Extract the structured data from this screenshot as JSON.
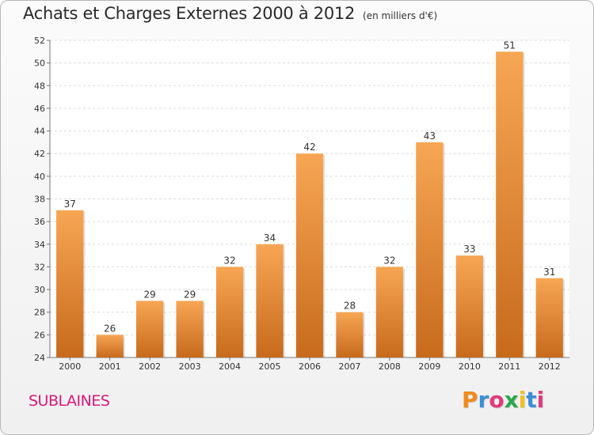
{
  "header": {
    "title": "Achats et Charges Externes 2000 à 2012",
    "unit": "(en milliers d'€)"
  },
  "footer": {
    "commune": "SUBLAINES",
    "logo_text": "Proxiti"
  },
  "colors": {
    "bar_light": "#f7a654",
    "bar_dark": "#c76a1c",
    "commune": "#d9187a",
    "logo": [
      "#f08a1c",
      "#3a8fd6",
      "#e23a7a",
      "#2aa84a",
      "#f0c11c",
      "#3a8fd6",
      "#e23a7a"
    ]
  },
  "chart_data": {
    "type": "bar",
    "title": "Achats et Charges Externes 2000 à 2012",
    "categories": [
      "2000",
      "2001",
      "2002",
      "2003",
      "2004",
      "2005",
      "2006",
      "2007",
      "2008",
      "2009",
      "2010",
      "2011",
      "2012"
    ],
    "values": [
      37,
      26,
      29,
      29,
      32,
      34,
      42,
      28,
      32,
      43,
      33,
      51,
      31
    ],
    "ylim": [
      24,
      52
    ],
    "yticks": [
      24,
      26,
      28,
      30,
      32,
      34,
      36,
      38,
      40,
      42,
      44,
      46,
      48,
      50,
      52
    ],
    "grid": true,
    "xlabel": "",
    "ylabel": ""
  }
}
